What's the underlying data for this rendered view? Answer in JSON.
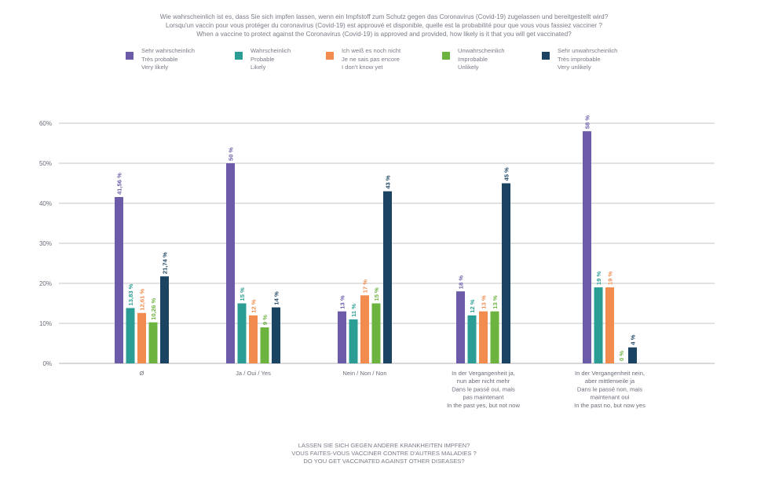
{
  "header": {
    "title_lines": [
      "Wie wahrscheinlich ist es, dass Sie sich impfen lassen, wenn ein Impfstoff zum Schutz gegen das Coronavirus (Covid-19) zugelassen und bereitgestellt wird?",
      "Lorsqu'un vaccin pour vous protéger du coronavirus (Covid-19) est approuvé et disponible, quelle est la probabilité pour que vous vous fassiez vacciner ?",
      "When a vaccine to protect against the Coronavirus (Covid-19) is approved and provided, how likely is it that you will get vaccinated?"
    ]
  },
  "legend": [
    {
      "de": "Sehr wahrscheinlich",
      "fr": "Très probable",
      "en": "Very likely"
    },
    {
      "de": "Wahrscheinlich",
      "fr": "Probable",
      "en": "Likely"
    },
    {
      "de": "Ich weiß es noch nicht",
      "fr": "Je ne sais pas encore",
      "en": "I don't know yet"
    },
    {
      "de": "Unwahrscheinlich",
      "fr": "Improbable",
      "en": "Unlikely"
    },
    {
      "de": "Sehr unwahrscheinlich",
      "fr": "Très improbable",
      "en": "Very unlikely"
    }
  ],
  "chart_data": {
    "type": "bar",
    "categories": [
      [
        "Ø"
      ],
      [
        "Ja / Oui / Yes"
      ],
      [
        "Nein / Non / Non"
      ],
      [
        "In der Vergangenheit ja,",
        "nun aber nicht mehr",
        "Dans le passé oui, mais",
        "pas maintenant",
        "In the past yes, but not now"
      ],
      [
        "In der Vergangenheit nein,",
        "aber mittlerweile ja",
        "Dans le passé non, mais",
        "maintenant oui",
        "In the past no, but now yes"
      ]
    ],
    "series": [
      {
        "name": "Sehr wahrscheinlich / Très probable / Very likely",
        "color": "#6b5ba8",
        "values": [
          41.56,
          50,
          13,
          18,
          58
        ],
        "labels": [
          "41,56 %",
          "50 %",
          "13 %",
          "18 %",
          "58 %"
        ]
      },
      {
        "name": "Wahrscheinlich / Probable / Likely",
        "color": "#2a9d94",
        "values": [
          13.83,
          15,
          11,
          12,
          19
        ],
        "labels": [
          "13,83 %",
          "15 %",
          "11 %",
          "12 %",
          "19 %"
        ]
      },
      {
        "name": "Ich weiß es noch nicht / Je ne sais pas encore / I don't know yet",
        "color": "#f28c4e",
        "values": [
          12.61,
          12,
          17,
          13,
          19
        ],
        "labels": [
          "12,61 %",
          "12 %",
          "17 %",
          "13 %",
          "19 %"
        ]
      },
      {
        "name": "Unwahrscheinlich / Improbable / Unlikely",
        "color": "#6cb33f",
        "values": [
          10.26,
          9,
          15,
          13,
          0
        ],
        "labels": [
          "10,26 %",
          "9 %",
          "15 %",
          "13 %",
          "0 %"
        ]
      },
      {
        "name": "Sehr unwahrscheinlich / Très improbable / Very unlikely",
        "color": "#1b4462",
        "values": [
          21.74,
          14,
          43,
          45,
          4
        ],
        "labels": [
          "21,74 %",
          "14 %",
          "43 %",
          "45 %",
          "4 %"
        ]
      }
    ],
    "yticks": [
      "0%",
      "10%",
      "20%",
      "30%",
      "40%",
      "50%",
      "60%"
    ],
    "ylim": [
      0,
      60
    ],
    "grid": true,
    "legend_position": "top",
    "xlabel_lines": [
      "LASSEN SIE SICH GEGEN ANDERE KRANKHEITEN IMPFEN?",
      "VOUS FAITES-VOUS VACCINER CONTRE D'AUTRES MALADIES ?",
      "DO YOU GET VACCINATED AGAINST OTHER DISEASES?"
    ]
  }
}
